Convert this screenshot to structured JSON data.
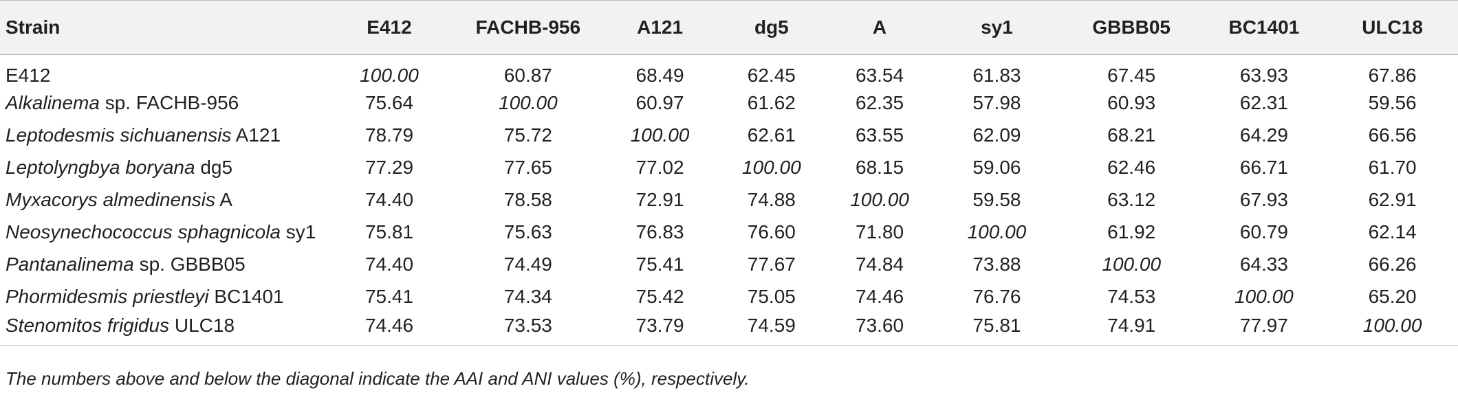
{
  "table": {
    "headers": [
      "Strain",
      "E412",
      "FACHB-956",
      "A121",
      "dg5",
      "A",
      "sy1",
      "GBBB05",
      "BC1401",
      "ULC18"
    ],
    "rows": [
      {
        "genus": "",
        "rest": "E412",
        "values": [
          "100.00",
          "60.87",
          "68.49",
          "62.45",
          "63.54",
          "61.83",
          "67.45",
          "63.93",
          "67.86"
        ]
      },
      {
        "genus": "Alkalinema",
        "rest": " sp. FACHB-956",
        "values": [
          "75.64",
          "100.00",
          "60.97",
          "61.62",
          "62.35",
          "57.98",
          "60.93",
          "62.31",
          "59.56"
        ]
      },
      {
        "genus": "Leptodesmis sichuanensis",
        "rest": " A121",
        "values": [
          "78.79",
          "75.72",
          "100.00",
          "62.61",
          "63.55",
          "62.09",
          "68.21",
          "64.29",
          "66.56"
        ]
      },
      {
        "genus": "Leptolyngbya boryana",
        "rest": " dg5",
        "values": [
          "77.29",
          "77.65",
          "77.02",
          "100.00",
          "68.15",
          "59.06",
          "62.46",
          "66.71",
          "61.70"
        ]
      },
      {
        "genus": "Myxacorys almedinensis",
        "rest": " A",
        "values": [
          "74.40",
          "78.58",
          "72.91",
          "74.88",
          "100.00",
          "59.58",
          "63.12",
          "67.93",
          "62.91"
        ]
      },
      {
        "genus": "Neosynechococcus sphagnicola",
        "rest": " sy1",
        "values": [
          "75.81",
          "75.63",
          "76.83",
          "76.60",
          "71.80",
          "100.00",
          "61.92",
          "60.79",
          "62.14"
        ]
      },
      {
        "genus": "Pantanalinema",
        "rest": " sp. GBBB05",
        "values": [
          "74.40",
          "74.49",
          "75.41",
          "77.67",
          "74.84",
          "73.88",
          "100.00",
          "64.33",
          "66.26"
        ]
      },
      {
        "genus": "Phormidesmis priestleyi",
        "rest": " BC1401",
        "values": [
          "75.41",
          "74.34",
          "75.42",
          "75.05",
          "74.46",
          "76.76",
          "74.53",
          "100.00",
          "65.20"
        ]
      },
      {
        "genus": "Stenomitos frigidus",
        "rest": " ULC18",
        "values": [
          "74.46",
          "73.53",
          "73.79",
          "74.59",
          "73.60",
          "75.81",
          "74.91",
          "77.97",
          "100.00"
        ]
      }
    ]
  },
  "footnote": "The numbers above and below the diagonal indicate the AAI and ANI values (%), respectively."
}
